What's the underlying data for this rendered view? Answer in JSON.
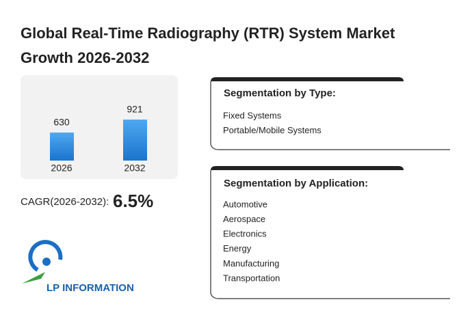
{
  "title": "Global Real-Time Radiography (RTR) System Market Growth 2026-2032",
  "chart_data": {
    "type": "bar",
    "categories": [
      "2026",
      "2032"
    ],
    "values": [
      630,
      921
    ],
    "color": "#2a8ae0"
  },
  "cagr": {
    "label": "CAGR(2026-2032):",
    "value": "6.5%"
  },
  "logo": {
    "text": "LP INFORMATION"
  },
  "segments": [
    {
      "heading": "Segmentation by Type:",
      "items": [
        "Fixed Systems",
        "Portable/Mobile Systems"
      ]
    },
    {
      "heading": "Segmentation by Application:",
      "items": [
        "Automotive",
        "Aerospace",
        "Electronics",
        "Energy",
        "Manufacturing",
        "Transportation"
      ]
    }
  ]
}
